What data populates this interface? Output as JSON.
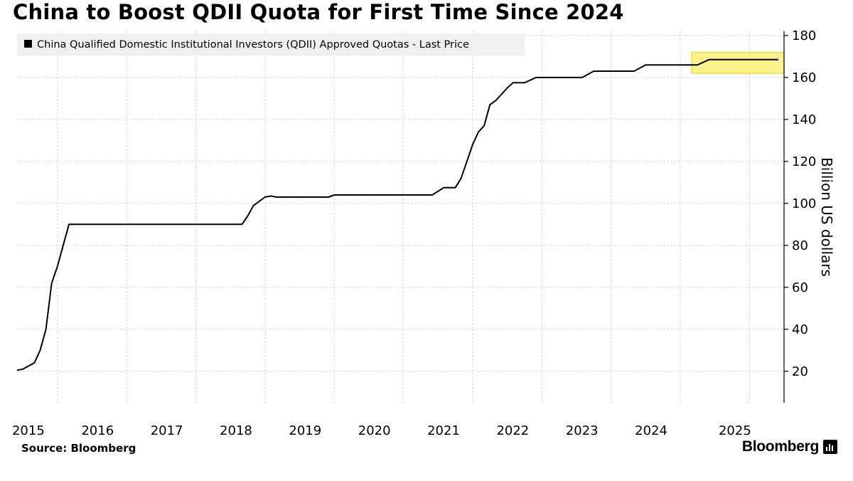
{
  "chart_data": {
    "type": "line",
    "title": "China to Boost QDII Quota for First Time Since 2024",
    "xlabel": "",
    "ylabel": "Billion US dollars",
    "ylim": [
      5,
      182
    ],
    "xlim": [
      "2014-06",
      "2025-07"
    ],
    "x_tick_labels": [
      "2015",
      "2016",
      "2017",
      "2018",
      "2019",
      "2020",
      "2021",
      "2022",
      "2023",
      "2024",
      "2025"
    ],
    "x_tick_positions": [
      "2015-01",
      "2016-01",
      "2017-01",
      "2018-01",
      "2019-01",
      "2020-01",
      "2021-01",
      "2022-01",
      "2023-01",
      "2024-01",
      "2025-01"
    ],
    "y_ticks": [
      20,
      40,
      60,
      80,
      100,
      120,
      140,
      160,
      180
    ],
    "grid": true,
    "legend_position": "top-left",
    "series": [
      {
        "name": "China Qualified Domestic Institutional Investors (QDII) Approved Quotas - Last Price",
        "color": "#000000",
        "points": [
          [
            "2014-06",
            20.5
          ],
          [
            "2014-07",
            21
          ],
          [
            "2014-08",
            22.5
          ],
          [
            "2014-09",
            24
          ],
          [
            "2014-10",
            30
          ],
          [
            "2014-11",
            40
          ],
          [
            "2014-12",
            62
          ],
          [
            "2015-01",
            70
          ],
          [
            "2015-02",
            80
          ],
          [
            "2015-03",
            90
          ],
          [
            "2016-06",
            90
          ],
          [
            "2017-09",
            90
          ],
          [
            "2017-10",
            94
          ],
          [
            "2017-11",
            99
          ],
          [
            "2017-12",
            101
          ],
          [
            "2018-01",
            103
          ],
          [
            "2018-02",
            103.5
          ],
          [
            "2018-03",
            103
          ],
          [
            "2018-12",
            103
          ],
          [
            "2019-01",
            104
          ],
          [
            "2020-06",
            104
          ],
          [
            "2020-08",
            107.5
          ],
          [
            "2020-10",
            107.5
          ],
          [
            "2020-11",
            112
          ],
          [
            "2020-12",
            120
          ],
          [
            "2021-01",
            128
          ],
          [
            "2021-02",
            134
          ],
          [
            "2021-03",
            137
          ],
          [
            "2021-04",
            147
          ],
          [
            "2021-05",
            149
          ],
          [
            "2021-06",
            152
          ],
          [
            "2021-07",
            155
          ],
          [
            "2021-08",
            157.5
          ],
          [
            "2021-10",
            157.5
          ],
          [
            "2021-12",
            160
          ],
          [
            "2022-08",
            160
          ],
          [
            "2022-10",
            163
          ],
          [
            "2023-05",
            163
          ],
          [
            "2023-07",
            166
          ],
          [
            "2024-04",
            166
          ],
          [
            "2024-06",
            168.5
          ],
          [
            "2025-06",
            168.5
          ]
        ]
      }
    ],
    "highlight": {
      "from": "2024-03",
      "to": "2025-07",
      "ymin": 162,
      "ymax": 172,
      "fill": "#fbf27a",
      "stroke": "#e8d81a"
    }
  },
  "footer": {
    "source": "Source: Bloomberg",
    "brand": "Bloomberg"
  },
  "icons": {
    "brand_icon": "terminal-bars-icon"
  }
}
